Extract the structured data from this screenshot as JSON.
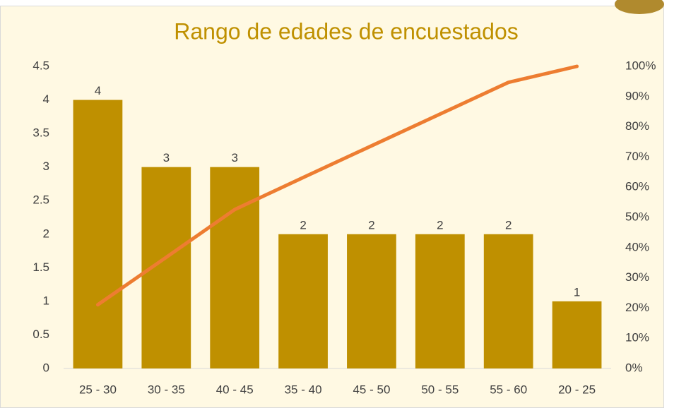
{
  "chart_data": {
    "type": "pareto",
    "title": "Rango de edades de encuestados",
    "categories": [
      "25 - 30",
      "30 - 35",
      "40 - 45",
      "35 - 40",
      "45 - 50",
      "50 - 55",
      "55 - 60",
      "20 - 25"
    ],
    "series": [
      {
        "type": "bar",
        "color": "#bf9000",
        "values": [
          4,
          3,
          3,
          2,
          2,
          2,
          2,
          1
        ]
      },
      {
        "type": "line",
        "axis": "y2",
        "color": "#ed7d31",
        "values": [
          21.1,
          36.8,
          52.6,
          63.2,
          73.7,
          84.2,
          94.7,
          100
        ]
      }
    ],
    "ylim": [
      0,
      4.5
    ],
    "yticks": [
      0,
      0.5,
      1,
      1.5,
      2,
      2.5,
      3,
      3.5,
      4,
      4.5
    ],
    "y2lim": [
      0,
      100
    ],
    "y2ticks": [
      {
        "value": 0,
        "label": "0%"
      },
      {
        "value": 10,
        "label": "10%"
      },
      {
        "value": 20,
        "label": "20%"
      },
      {
        "value": 30,
        "label": "30%"
      },
      {
        "value": 40,
        "label": "40%"
      },
      {
        "value": 50,
        "label": "50%"
      },
      {
        "value": 60,
        "label": "60%"
      },
      {
        "value": 70,
        "label": "70%"
      },
      {
        "value": 80,
        "label": "80%"
      },
      {
        "value": 90,
        "label": "90%"
      },
      {
        "value": 100,
        "label": "100%"
      }
    ],
    "data_labels": true
  }
}
